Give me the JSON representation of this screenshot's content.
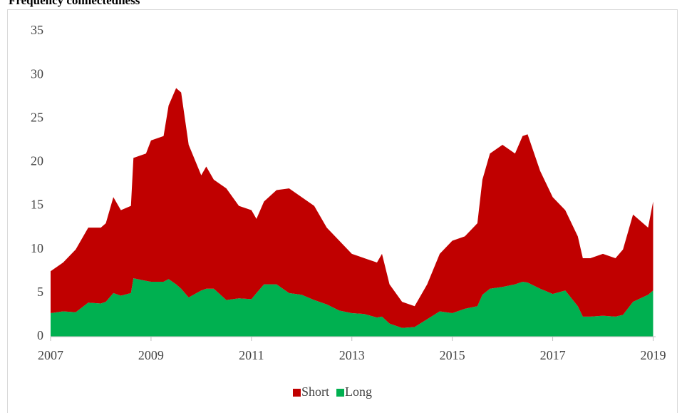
{
  "chart_data": {
    "type": "stacked_area",
    "title": "Frequency connectedness",
    "x": [
      2007.0,
      2007.25,
      2007.5,
      2007.75,
      2008.0,
      2008.1,
      2008.25,
      2008.4,
      2008.6,
      2008.65,
      2008.9,
      2009.0,
      2009.25,
      2009.35,
      2009.5,
      2009.6,
      2009.75,
      2010.0,
      2010.1,
      2010.25,
      2010.5,
      2010.75,
      2011.0,
      2011.1,
      2011.25,
      2011.5,
      2011.75,
      2012.0,
      2012.25,
      2012.5,
      2012.75,
      2013.0,
      2013.25,
      2013.5,
      2013.6,
      2013.75,
      2014.0,
      2014.25,
      2014.5,
      2014.75,
      2015.0,
      2015.25,
      2015.5,
      2015.6,
      2015.75,
      2016.0,
      2016.25,
      2016.4,
      2016.5,
      2016.75,
      2017.0,
      2017.25,
      2017.5,
      2017.6,
      2017.75,
      2018.0,
      2018.25,
      2018.4,
      2018.6,
      2018.9,
      2019.0
    ],
    "series": [
      {
        "name": "Long",
        "color": "#00b050",
        "values": [
          2.7,
          2.9,
          2.8,
          3.9,
          3.8,
          4,
          5,
          4.7,
          5,
          6.7,
          6.4,
          6.3,
          6.3,
          6.6,
          6,
          5.5,
          4.5,
          5.3,
          5.5,
          5.5,
          4.2,
          4.4,
          4.3,
          5,
          6,
          6,
          5,
          4.8,
          4.2,
          3.7,
          3,
          2.7,
          2.6,
          2.2,
          2.3,
          1.5,
          1,
          1.1,
          2,
          2.9,
          2.7,
          3.2,
          3.5,
          4.8,
          5.5,
          5.7,
          6,
          6.3,
          6.2,
          5.5,
          4.9,
          5.3,
          3.5,
          2.3,
          2.3,
          2.4,
          2.3,
          2.5,
          4,
          4.8,
          5.3
        ]
      },
      {
        "name": "Short",
        "color": "#c00000",
        "values": [
          4.8,
          5.6,
          7.2,
          8.6,
          8.7,
          9,
          11,
          9.8,
          10,
          13.8,
          14.6,
          16.2,
          16.7,
          19.9,
          22.5,
          22.5,
          17.5,
          13.2,
          14,
          12.5,
          12.8,
          10.6,
          10.2,
          8.5,
          9.5,
          10.8,
          12,
          11.2,
          10.8,
          8.8,
          8,
          6.8,
          6.4,
          6.3,
          7.2,
          4.5,
          3,
          2.4,
          4,
          6.6,
          8.3,
          8.3,
          9.5,
          13.2,
          15.5,
          16.3,
          15,
          16.7,
          17,
          13.5,
          11.1,
          9.2,
          8,
          6.7,
          6.7,
          7.1,
          6.7,
          7.5,
          10,
          7.7,
          10.2
        ]
      }
    ],
    "legend_order": [
      "Short",
      "Long"
    ],
    "xlim": [
      2007,
      2019.05
    ],
    "xticks": [
      2007,
      2009,
      2011,
      2013,
      2015,
      2017,
      2019
    ],
    "ylim": [
      0,
      35
    ],
    "yticks": [
      0,
      5,
      10,
      15,
      20,
      25,
      30,
      35
    ],
    "grid": false,
    "legend": "bottom"
  }
}
